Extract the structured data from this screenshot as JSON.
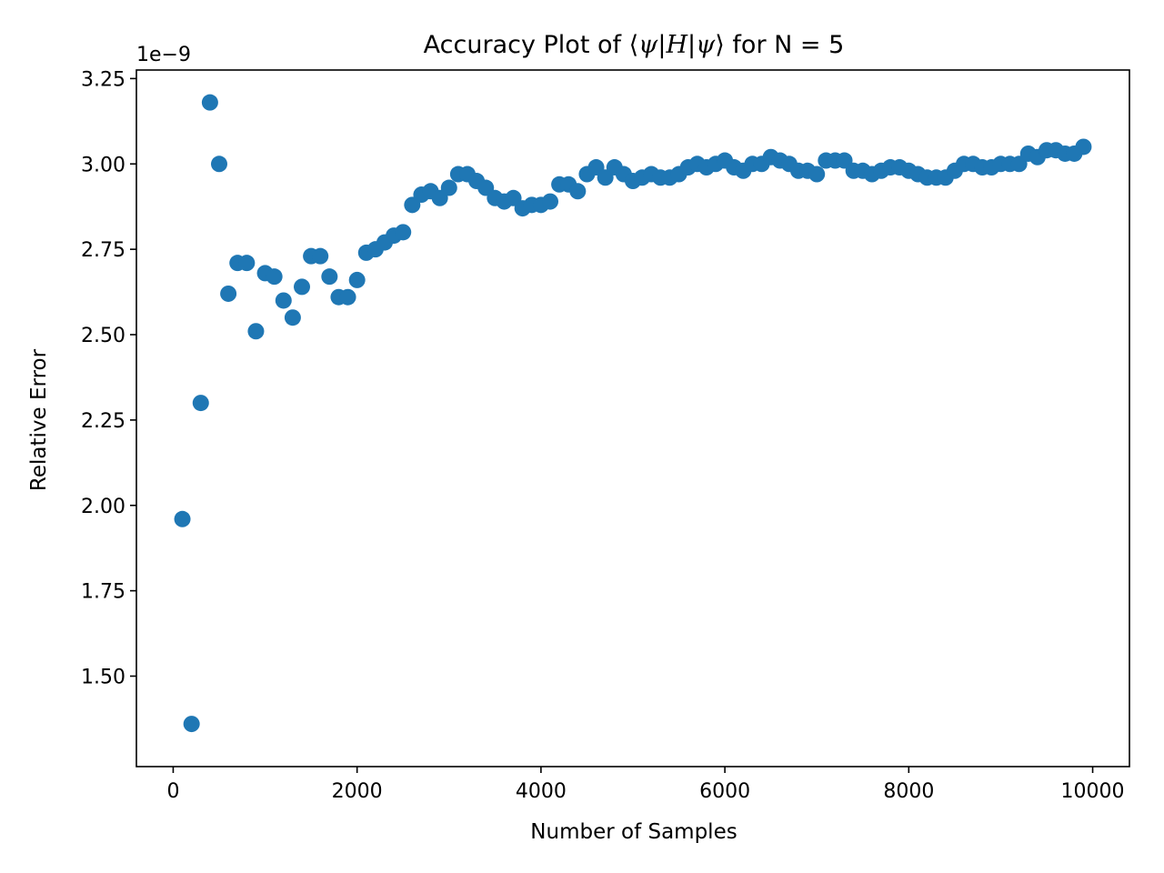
{
  "chart_data": {
    "type": "scatter",
    "title": {
      "prefix": "Accuracy Plot of ",
      "bra_open": "⟨",
      "psi1": "ψ",
      "bar1": "|",
      "op": "H",
      "bar2": "|",
      "psi2": "ψ",
      "ket_close": "⟩",
      "suffix": " for N = 5"
    },
    "xlabel": "Number of Samples",
    "ylabel": "Relative Error",
    "y_offset_label": "1e−9",
    "xlim": [
      -400,
      10400
    ],
    "ylim": [
      1.235,
      3.275
    ],
    "x_ticks": [
      0,
      2000,
      4000,
      6000,
      8000,
      10000
    ],
    "x_tick_labels": [
      "0",
      "2000",
      "4000",
      "6000",
      "8000",
      "10000"
    ],
    "y_ticks": [
      1.5,
      1.75,
      2.0,
      2.25,
      2.5,
      2.75,
      3.0,
      3.25
    ],
    "y_tick_labels": [
      "1.50",
      "1.75",
      "2.00",
      "2.25",
      "2.50",
      "2.75",
      "3.00",
      "3.25"
    ],
    "grid": false,
    "marker_color": "#1f77b4",
    "x": [
      100,
      200,
      300,
      400,
      500,
      600,
      700,
      800,
      900,
      1000,
      1100,
      1200,
      1300,
      1400,
      1500,
      1600,
      1700,
      1800,
      1900,
      2000,
      2100,
      2200,
      2300,
      2400,
      2500,
      2600,
      2700,
      2800,
      2900,
      3000,
      3100,
      3200,
      3300,
      3400,
      3500,
      3600,
      3700,
      3800,
      3900,
      4000,
      4100,
      4200,
      4300,
      4400,
      4500,
      4600,
      4700,
      4800,
      4900,
      5000,
      5100,
      5200,
      5300,
      5400,
      5500,
      5600,
      5700,
      5800,
      5900,
      6000,
      6100,
      6200,
      6300,
      6400,
      6500,
      6600,
      6700,
      6800,
      6900,
      7000,
      7100,
      7200,
      7300,
      7400,
      7500,
      7600,
      7700,
      7800,
      7900,
      8000,
      8100,
      8200,
      8300,
      8400,
      8500,
      8600,
      8700,
      8800,
      8900,
      9000,
      9100,
      9200,
      9300,
      9400,
      9500,
      9600,
      9700,
      9800,
      9900
    ],
    "y": [
      1.96,
      1.36,
      2.3,
      3.18,
      3.0,
      2.62,
      2.71,
      2.71,
      2.51,
      2.68,
      2.67,
      2.6,
      2.55,
      2.64,
      2.73,
      2.73,
      2.67,
      2.61,
      2.61,
      2.66,
      2.74,
      2.75,
      2.77,
      2.79,
      2.8,
      2.88,
      2.91,
      2.92,
      2.9,
      2.93,
      2.97,
      2.97,
      2.95,
      2.93,
      2.9,
      2.89,
      2.9,
      2.87,
      2.88,
      2.88,
      2.89,
      2.94,
      2.94,
      2.92,
      2.97,
      2.99,
      2.96,
      2.99,
      2.97,
      2.95,
      2.96,
      2.97,
      2.96,
      2.96,
      2.97,
      2.99,
      3.0,
      2.99,
      3.0,
      3.01,
      2.99,
      2.98,
      3.0,
      3.0,
      3.02,
      3.01,
      3.0,
      2.98,
      2.98,
      2.97,
      3.01,
      3.01,
      3.01,
      2.98,
      2.98,
      2.97,
      2.98,
      2.99,
      2.99,
      2.98,
      2.97,
      2.96,
      2.96,
      2.96,
      2.98,
      3.0,
      3.0,
      2.99,
      2.99,
      3.0,
      3.0,
      3.0,
      3.03,
      3.02,
      3.04,
      3.04,
      3.03,
      3.03,
      3.05
    ]
  }
}
